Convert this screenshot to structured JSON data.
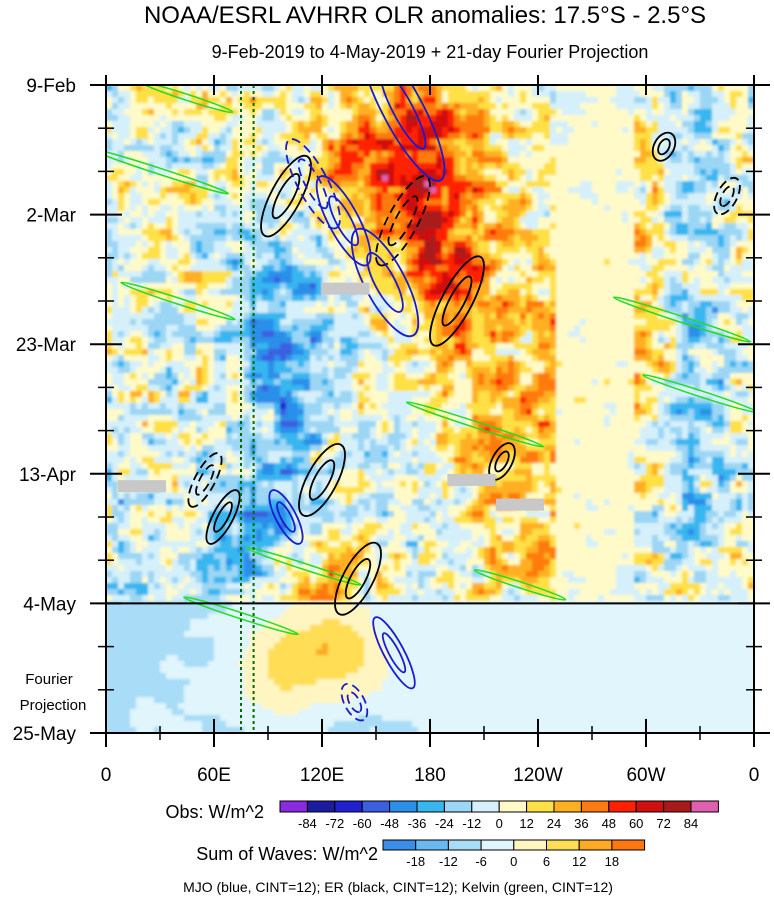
{
  "chart_data": {
    "type": "heatmap",
    "title": "NOAA/ESRL AVHRR OLR anomalies: 17.5°S - 2.5°S",
    "subtitle": "9-Feb-2019 to 4-May-2019 + 21-day Fourier Projection",
    "x_axis": {
      "ticks": [
        "0",
        "60E",
        "120E",
        "180",
        "120W",
        "60W",
        "0"
      ],
      "lon_values": [
        0,
        60,
        120,
        180,
        240,
        300,
        360
      ],
      "range": [
        0,
        360
      ]
    },
    "y_axis": {
      "ticks": [
        "9-Feb",
        "2-Mar",
        "23-Mar",
        "13-Apr",
        "4-May",
        "25-May"
      ],
      "day_values": [
        0,
        21,
        42,
        63,
        84,
        105
      ],
      "range_days": [
        0,
        105
      ],
      "projection_start_day": 84
    },
    "projection_label": [
      "Fourier",
      "Projection"
    ],
    "obs_colorbar": {
      "label": "Obs: W/m^2",
      "levels": [
        "-84",
        "-72",
        "-60",
        "-48",
        "-36",
        "-24",
        "-12",
        "0",
        "12",
        "24",
        "36",
        "48",
        "60",
        "72",
        "84"
      ],
      "colors": [
        "#8a2be2",
        "#1c1c9e",
        "#2020d0",
        "#3a5fe0",
        "#2c8fea",
        "#38b6f0",
        "#9cd6f5",
        "#d5f0fa",
        "#fffac8",
        "#ffe045",
        "#ffb020",
        "#ff7a10",
        "#ff2000",
        "#d01010",
        "#a81a1a",
        "#e060b0"
      ]
    },
    "waves_colorbar": {
      "label": "Sum of Waves: W/m^2",
      "levels": [
        "-18",
        "-12",
        "-6",
        "0",
        "6",
        "12",
        "18"
      ],
      "colors": [
        "#3a8de8",
        "#6ab8f2",
        "#a8dcf7",
        "#e0f5fc",
        "#fff5c0",
        "#ffdd55",
        "#ffaa22",
        "#ff7711"
      ]
    },
    "mjo_center_lon": [
      75,
      82
    ],
    "wave_events": {
      "mjo": [
        {
          "lon": 165,
          "day": 4,
          "len": 16,
          "wid": 4,
          "dash": false
        },
        {
          "lon": 115,
          "day": 16,
          "len": 10,
          "wid": 3,
          "dash": true
        },
        {
          "lon": 132,
          "day": 22,
          "len": 10,
          "wid": 3,
          "dash": false
        },
        {
          "lon": 155,
          "day": 32,
          "len": 12,
          "wid": 4,
          "dash": false
        },
        {
          "lon": 100,
          "day": 70,
          "len": 6,
          "wid": 2,
          "dash": false
        },
        {
          "lon": 160,
          "day": 92,
          "len": 8,
          "wid": 2,
          "dash": false
        },
        {
          "lon": 138,
          "day": 100,
          "len": 4,
          "wid": 2,
          "dash": true
        }
      ],
      "er": [
        {
          "lon": 100,
          "day": 18,
          "len": 9,
          "wid": 3,
          "dash": false
        },
        {
          "lon": 165,
          "day": 22,
          "len": 10,
          "wid": 3,
          "dash": true
        },
        {
          "lon": 195,
          "day": 35,
          "len": 10,
          "wid": 3,
          "dash": false
        },
        {
          "lon": 120,
          "day": 64,
          "len": 8,
          "wid": 3,
          "dash": false
        },
        {
          "lon": 65,
          "day": 70,
          "len": 6,
          "wid": 2,
          "dash": false
        },
        {
          "lon": 55,
          "day": 64,
          "len": 6,
          "wid": 2,
          "dash": true
        },
        {
          "lon": 140,
          "day": 80,
          "len": 8,
          "wid": 3,
          "dash": false
        },
        {
          "lon": 220,
          "day": 61,
          "len": 4,
          "wid": 2,
          "dash": false
        },
        {
          "lon": 345,
          "day": 18,
          "len": 4,
          "wid": 2,
          "dash": true
        },
        {
          "lon": 310,
          "day": 10,
          "len": 3,
          "wid": 2,
          "dash": false
        }
      ],
      "kelvin": [
        {
          "lon": 45,
          "day": 2,
          "len": 4,
          "wid": 1,
          "dash": false
        },
        {
          "lon": 30,
          "day": 14,
          "len": 6,
          "wid": 1,
          "dash": false
        },
        {
          "lon": 40,
          "day": 35,
          "len": 5,
          "wid": 1,
          "dash": false
        },
        {
          "lon": 320,
          "day": 38,
          "len": 6,
          "wid": 1,
          "dash": false
        },
        {
          "lon": 330,
          "day": 50,
          "len": 5,
          "wid": 1,
          "dash": false
        },
        {
          "lon": 205,
          "day": 55,
          "len": 6,
          "wid": 1,
          "dash": false
        },
        {
          "lon": 110,
          "day": 78,
          "len": 5,
          "wid": 1,
          "dash": false
        },
        {
          "lon": 230,
          "day": 81,
          "len": 4,
          "wid": 1,
          "dash": false
        },
        {
          "lon": 75,
          "day": 86,
          "len": 5,
          "wid": 1,
          "dash": false
        }
      ]
    },
    "missing_data_boxes": [
      {
        "lon": 133,
        "day": 33
      },
      {
        "lon": 20,
        "day": 65
      },
      {
        "lon": 203,
        "day": 64
      },
      {
        "lon": 230,
        "day": 68
      }
    ],
    "footer": "MJO (blue, CINT=12); ER (black, CINT=12); Kelvin (green, CINT=12)"
  }
}
